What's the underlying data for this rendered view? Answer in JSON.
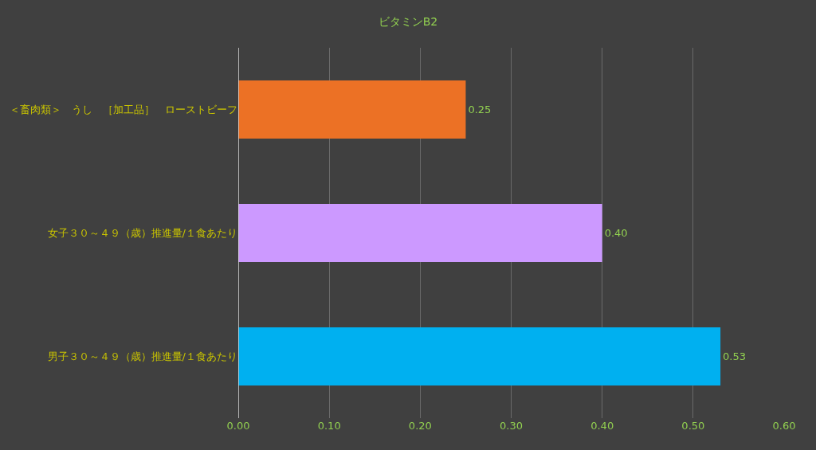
{
  "chart_data": {
    "type": "bar",
    "orientation": "horizontal",
    "title": "ビタミンB2",
    "categories": [
      "＜畜肉類＞　うし　［加工品］　ローストビーフ",
      "女子３０～４９（歳）推進量/１食あたり",
      "男子３０～４９（歳）推進量/１食あたり"
    ],
    "values": [
      0.25,
      0.4,
      0.53
    ],
    "colors": [
      "#ec7125",
      "#cc99ff",
      "#00b0f0"
    ],
    "value_labels": [
      "0.25",
      "0.40",
      "0.53"
    ],
    "xlim": [
      0,
      0.6
    ],
    "xticks": [
      {
        "value": 0,
        "label": "0.00"
      },
      {
        "value": 0.1,
        "label": "0.10"
      },
      {
        "value": 0.2,
        "label": "0.20"
      },
      {
        "value": 0.3,
        "label": "0.30"
      },
      {
        "value": 0.4,
        "label": "0.40"
      },
      {
        "value": 0.5,
        "label": "0.50"
      },
      {
        "value": 0.6,
        "label": "0.60"
      }
    ],
    "grid": "x",
    "legend": false
  }
}
